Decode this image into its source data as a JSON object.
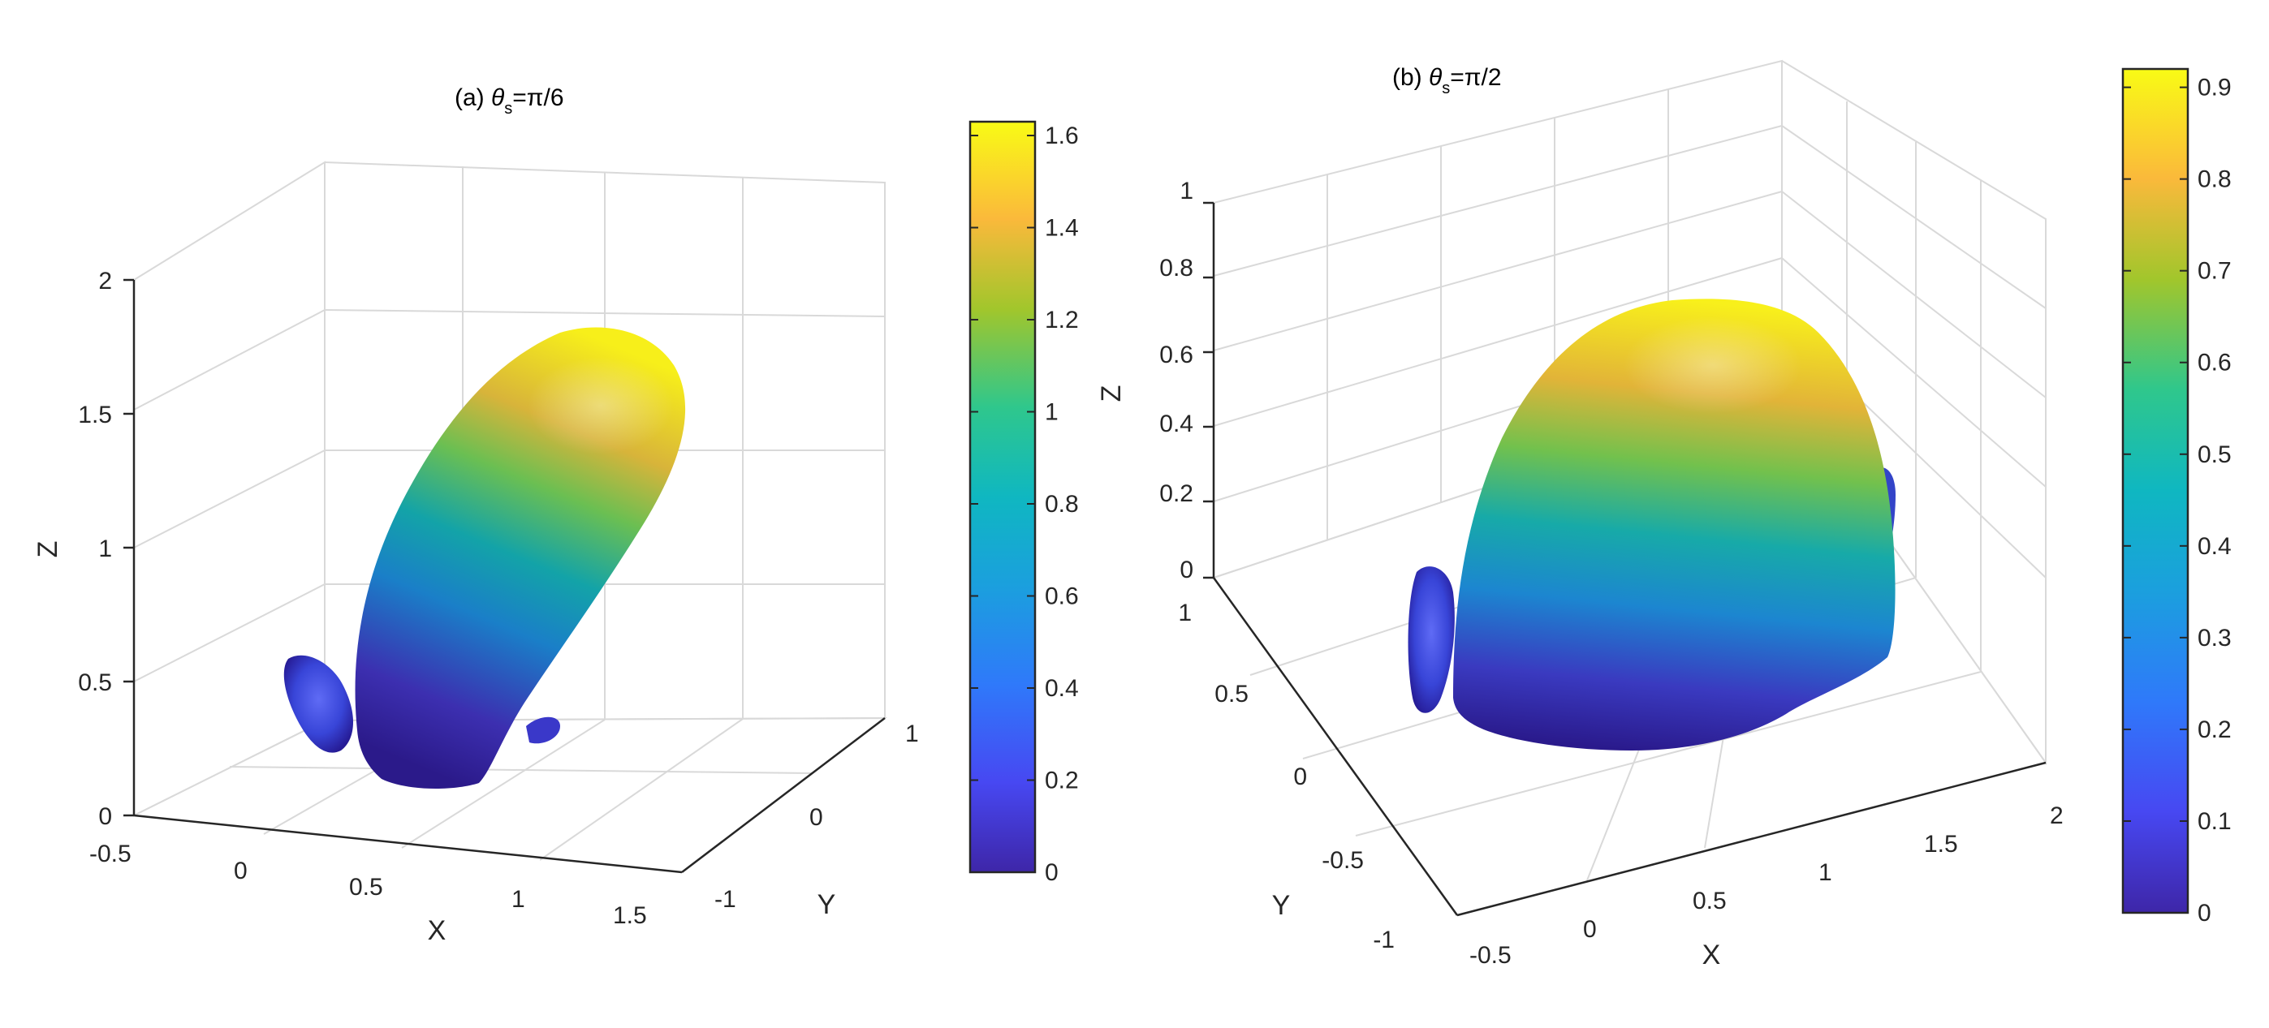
{
  "chart_data": [
    {
      "type": "surface",
      "title_prefix": "(a) ",
      "title_symbol": "θ",
      "title_subscript": "s",
      "title_suffix": "=π/6",
      "xlabel": "X",
      "ylabel": "Y",
      "zlabel": "Z",
      "xticks": [
        "-0.5",
        "0",
        "0.5",
        "1",
        "1.5"
      ],
      "yticks": [
        "-1",
        "0",
        "1"
      ],
      "zticks": [
        "0",
        "0.5",
        "1",
        "1.5",
        "2"
      ],
      "xlim": [
        -0.5,
        1.5
      ],
      "ylim": [
        -1,
        1
      ],
      "zlim": [
        0,
        2
      ],
      "grid": true,
      "colormap": "parula",
      "colorbar_ticks": [
        "0",
        "0.2",
        "0.4",
        "0.6",
        "0.8",
        "1",
        "1.2",
        "1.4",
        "1.6"
      ],
      "colorbar_range": [
        0,
        1.63
      ]
    },
    {
      "type": "surface",
      "title_prefix": "(b) ",
      "title_symbol": "θ",
      "title_subscript": "s",
      "title_suffix": "=π/2",
      "xlabel": "X",
      "ylabel": "Y",
      "zlabel": "Z",
      "xticks": [
        "-0.5",
        "0",
        "0.5",
        "1",
        "1.5",
        "2"
      ],
      "yticks": [
        "-1",
        "-0.5",
        "0",
        "0.5",
        "1"
      ],
      "zticks": [
        "0",
        "0.2",
        "0.4",
        "0.6",
        "0.8",
        "1"
      ],
      "xlim": [
        -0.5,
        2
      ],
      "ylim": [
        -1,
        1
      ],
      "zlim": [
        0,
        1
      ],
      "grid": true,
      "colormap": "parula",
      "colorbar_ticks": [
        "0",
        "0.1",
        "0.2",
        "0.3",
        "0.4",
        "0.5",
        "0.6",
        "0.7",
        "0.8",
        "0.9"
      ],
      "colorbar_range": [
        0,
        0.92
      ]
    }
  ]
}
